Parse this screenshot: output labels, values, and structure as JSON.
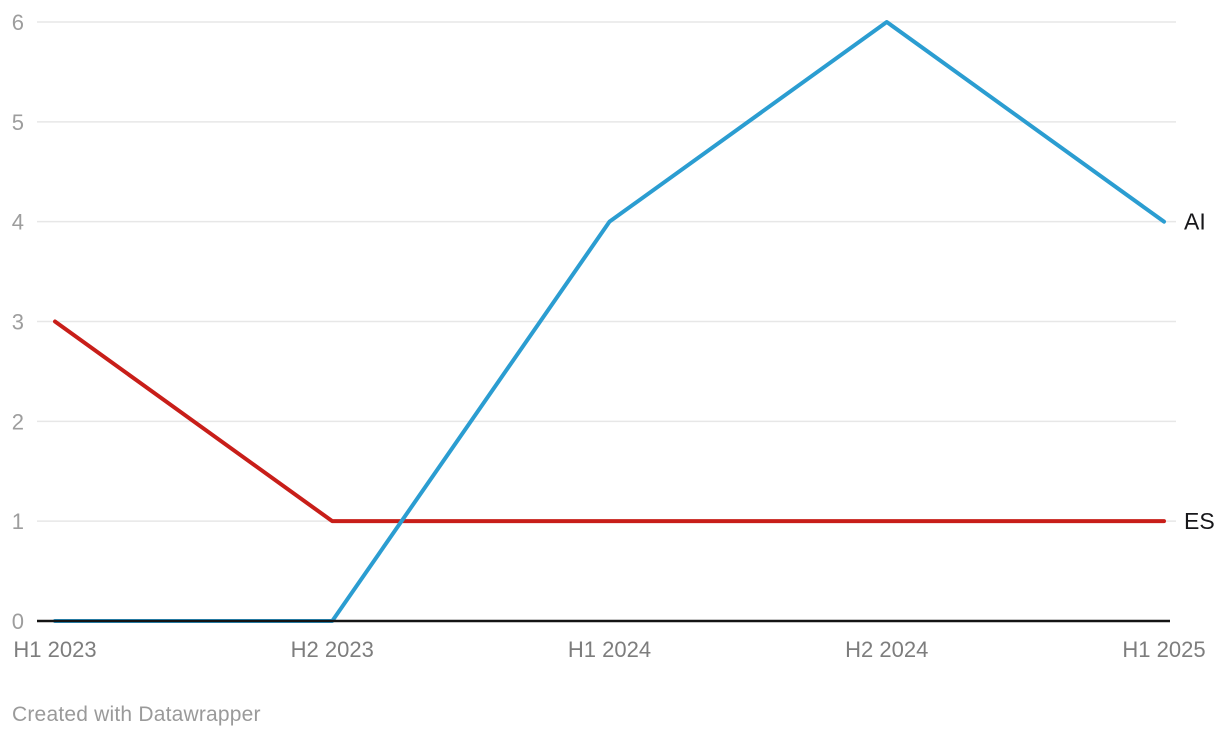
{
  "chart_data": {
    "type": "line",
    "categories": [
      "H1 2023",
      "H2 2023",
      "H1 2024",
      "H2 2024",
      "H1 2025"
    ],
    "series": [
      {
        "name": "AI",
        "color": "#2b9dd1",
        "values": [
          0,
          0,
          4,
          6,
          4
        ]
      },
      {
        "name": "ES",
        "color": "#c81e19",
        "values": [
          3,
          1,
          1,
          1,
          1
        ]
      }
    ],
    "ylim": [
      0,
      6
    ],
    "yticks": [
      0,
      1,
      2,
      3,
      4,
      5,
      6
    ],
    "grid": true,
    "legend_position": "line-end-labels-right"
  },
  "colors": {
    "grid": "#e7e7e7",
    "axis": "#141414",
    "y_tick_label": "#9d9d9d",
    "x_tick_label": "#7d7d7d",
    "series_label": "#17171a",
    "credit": "#9a9a9a",
    "background": "#ffffff"
  },
  "footer": {
    "credit": "Created with Datawrapper"
  }
}
